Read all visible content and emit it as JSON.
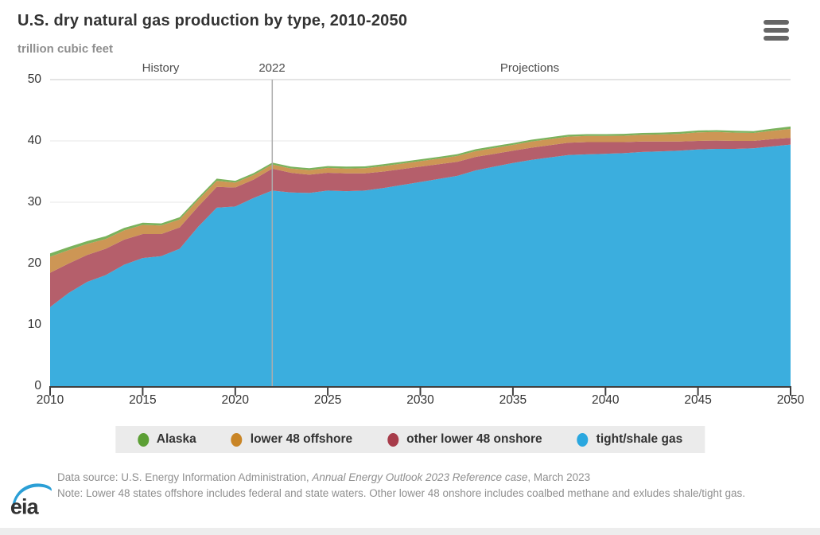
{
  "header": {
    "title": "U.S. dry natural gas production by type, 2010-2050",
    "subtitle": "trillion cubic feet",
    "menu_icon": "hamburger-menu"
  },
  "colors": {
    "axis": "#404040",
    "grid": "#e7e7e7",
    "grid_top": "#c9c9c9",
    "divider_line": "#adadad",
    "legend_bg": "#ebebeb",
    "title_text": "#333333",
    "muted_text": "#8f8f8f",
    "eia_blue": "#2b9fd6"
  },
  "chart_data": {
    "type": "area",
    "stacking": "normal",
    "title": "U.S. dry natural gas production by type, 2010-2050",
    "ylabel": "trillion cubic feet",
    "xlabel": "",
    "ylim": [
      0,
      50
    ],
    "y_ticks": [
      0,
      10,
      20,
      30,
      40,
      50
    ],
    "x_ticks": [
      2010,
      2015,
      2020,
      2025,
      2030,
      2035,
      2040,
      2045,
      2050
    ],
    "divider_x": 2022,
    "annotations": {
      "history": "History",
      "divider_year": "2022",
      "projections": "Projections"
    },
    "grid": true,
    "legend_position": "bottom",
    "x": [
      2010,
      2011,
      2012,
      2013,
      2014,
      2015,
      2016,
      2017,
      2018,
      2019,
      2020,
      2021,
      2022,
      2023,
      2024,
      2025,
      2026,
      2027,
      2028,
      2029,
      2030,
      2031,
      2032,
      2033,
      2034,
      2035,
      2036,
      2037,
      2038,
      2039,
      2040,
      2041,
      2042,
      2043,
      2044,
      2045,
      2046,
      2047,
      2048,
      2049,
      2050
    ],
    "series": [
      {
        "name": "tight/shale gas",
        "color": "#3baede",
        "values": [
          12.9,
          15.2,
          17.0,
          18.1,
          19.8,
          20.9,
          21.2,
          22.4,
          26.0,
          29.1,
          29.3,
          30.7,
          31.9,
          31.6,
          31.5,
          31.9,
          31.8,
          31.9,
          32.3,
          32.8,
          33.3,
          33.8,
          34.3,
          35.2,
          35.8,
          36.4,
          36.9,
          37.3,
          37.7,
          37.8,
          37.9,
          38.0,
          38.2,
          38.3,
          38.4,
          38.6,
          38.7,
          38.7,
          38.8,
          39.1,
          39.4
        ]
      },
      {
        "name": "other lower 48 onshore",
        "color": "#b55f6b",
        "values": [
          5.6,
          4.8,
          4.4,
          4.3,
          4.1,
          3.9,
          3.6,
          3.5,
          3.3,
          3.4,
          3.1,
          3.0,
          3.6,
          3.2,
          3.0,
          2.9,
          2.9,
          2.8,
          2.7,
          2.6,
          2.5,
          2.4,
          2.3,
          2.2,
          2.1,
          2.0,
          2.0,
          2.0,
          2.0,
          2.0,
          1.9,
          1.8,
          1.7,
          1.6,
          1.5,
          1.4,
          1.35,
          1.3,
          1.2,
          1.2,
          1.1
        ]
      },
      {
        "name": "lower 48 offshore",
        "color": "#cd9655",
        "values": [
          2.6,
          2.2,
          1.8,
          1.6,
          1.5,
          1.5,
          1.4,
          1.3,
          1.1,
          1.0,
          0.8,
          0.75,
          0.65,
          0.7,
          0.75,
          0.8,
          0.8,
          0.85,
          0.9,
          0.9,
          0.9,
          0.9,
          0.95,
          0.95,
          0.95,
          0.95,
          1.0,
          1.0,
          1.0,
          1.0,
          1.0,
          1.05,
          1.1,
          1.15,
          1.25,
          1.4,
          1.4,
          1.35,
          1.3,
          1.35,
          1.45
        ]
      },
      {
        "name": "Alaska",
        "color": "#7ab25c",
        "values": [
          0.55,
          0.5,
          0.45,
          0.45,
          0.4,
          0.35,
          0.35,
          0.35,
          0.35,
          0.35,
          0.3,
          0.3,
          0.3,
          0.3,
          0.3,
          0.3,
          0.3,
          0.3,
          0.3,
          0.3,
          0.3,
          0.3,
          0.3,
          0.3,
          0.3,
          0.3,
          0.3,
          0.3,
          0.3,
          0.3,
          0.3,
          0.3,
          0.3,
          0.3,
          0.3,
          0.3,
          0.3,
          0.3,
          0.3,
          0.35,
          0.4
        ]
      }
    ]
  },
  "legend": {
    "items": [
      {
        "label": "Alaska",
        "color": "#5c9f35"
      },
      {
        "label": "lower 48 offshore",
        "color": "#c98526"
      },
      {
        "label": "other lower 48 onshore",
        "color": "#a73c4a"
      },
      {
        "label": "tight/shale gas",
        "color": "#2aa7df"
      }
    ]
  },
  "footer": {
    "datasource_prefix": "Data source: U.S. Energy Information Administration, ",
    "datasource_italic": "Annual Energy Outlook 2023 Reference case",
    "datasource_suffix": ", March 2023",
    "note": "Note: Lower 48 states offshore includes federal and state waters. Other lower 48 onshore includes coalbed methane and exludes shale/tight gas.",
    "logo_text": "eia"
  }
}
